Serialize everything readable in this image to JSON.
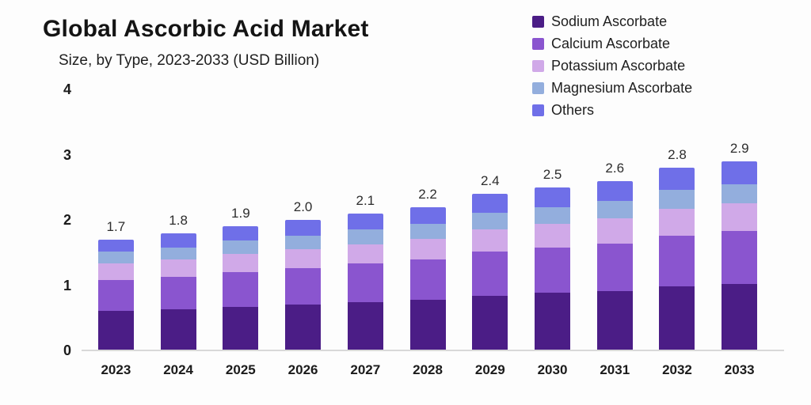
{
  "header": {
    "title": "Global Ascorbic Acid Market",
    "subtitle": "Size, by Type, 2023-2033 (USD Billion)"
  },
  "colors": {
    "background": "#fdfdfd",
    "axis_line": "#d8d8d8",
    "text": "#1b1b1b"
  },
  "chart_data": {
    "type": "bar",
    "stacked": true,
    "title": "Global Ascorbic Acid Market",
    "subtitle": "Size, by Type, 2023-2033 (USD Billion)",
    "xlabel": "",
    "ylabel": "",
    "ylim": [
      0,
      4
    ],
    "yticks": [
      0,
      1,
      2,
      3,
      4
    ],
    "grid": false,
    "legend_position": "top-right",
    "categories": [
      "2023",
      "2024",
      "2025",
      "2026",
      "2027",
      "2028",
      "2029",
      "2030",
      "2031",
      "2032",
      "2033"
    ],
    "totals": [
      1.7,
      1.8,
      1.9,
      2.0,
      2.1,
      2.2,
      2.4,
      2.5,
      2.6,
      2.8,
      2.9
    ],
    "total_labels": [
      "1.7",
      "1.8",
      "1.9",
      "2.0",
      "2.1",
      "2.2",
      "2.4",
      "2.5",
      "2.6",
      "2.8",
      "2.9"
    ],
    "series": [
      {
        "name": "Sodium Ascorbate",
        "color": "#4b1d86",
        "values": [
          0.6,
          0.63,
          0.67,
          0.7,
          0.74,
          0.77,
          0.84,
          0.88,
          0.91,
          0.98,
          1.02
        ]
      },
      {
        "name": "Calcium Ascorbate",
        "color": "#8a55cf",
        "values": [
          0.48,
          0.5,
          0.53,
          0.56,
          0.59,
          0.62,
          0.67,
          0.7,
          0.73,
          0.78,
          0.81
        ]
      },
      {
        "name": "Potassium Ascorbate",
        "color": "#d0a9e8",
        "values": [
          0.25,
          0.26,
          0.28,
          0.29,
          0.3,
          0.32,
          0.35,
          0.36,
          0.38,
          0.41,
          0.42
        ]
      },
      {
        "name": "Magnesium Ascorbate",
        "color": "#93aedd",
        "values": [
          0.18,
          0.19,
          0.2,
          0.21,
          0.22,
          0.23,
          0.25,
          0.26,
          0.27,
          0.29,
          0.3
        ]
      },
      {
        "name": "Others",
        "color": "#6f6fe8",
        "values": [
          0.19,
          0.22,
          0.22,
          0.24,
          0.25,
          0.26,
          0.29,
          0.3,
          0.31,
          0.34,
          0.35
        ]
      }
    ]
  }
}
